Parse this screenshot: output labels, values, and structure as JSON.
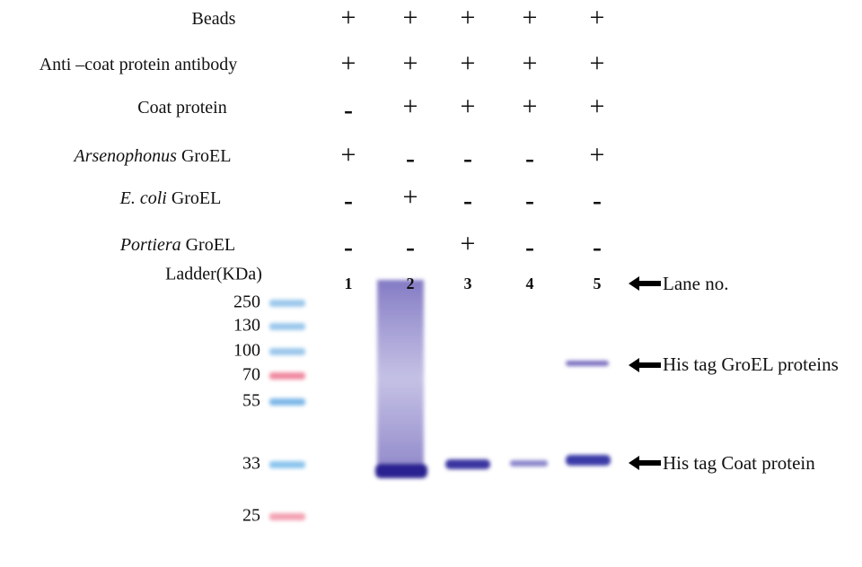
{
  "conditions": [
    {
      "text": "Beads",
      "signs": [
        "+",
        "+",
        "+",
        "+",
        "+"
      ]
    },
    {
      "text": "Anti –coat protein antibody",
      "signs": [
        "+",
        "+",
        "+",
        "+",
        "+"
      ]
    },
    {
      "text": "Coat protein",
      "signs": [
        "-",
        "+",
        "+",
        "+",
        "+"
      ]
    },
    {
      "italic": "Arsenophonus",
      "text": "GroEL",
      "signs": [
        "+",
        "-",
        "-",
        "-",
        "+"
      ]
    },
    {
      "italic": "E. coli",
      "text": "GroEL",
      "signs": [
        "-",
        "+",
        "-",
        "-",
        "-"
      ]
    },
    {
      "italic": "Portiera",
      "text": "GroEL",
      "signs": [
        "-",
        "-",
        "+",
        "-",
        "-"
      ]
    }
  ],
  "ladder": {
    "title": "Ladder(KDa)",
    "markers": [
      250,
      130,
      100,
      70,
      55,
      33,
      25
    ]
  },
  "lanes": [
    "1",
    "2",
    "3",
    "4",
    "5"
  ],
  "annotations": [
    "Lane no.",
    "His tag GroEL proteins",
    "His tag Coat protein"
  ]
}
